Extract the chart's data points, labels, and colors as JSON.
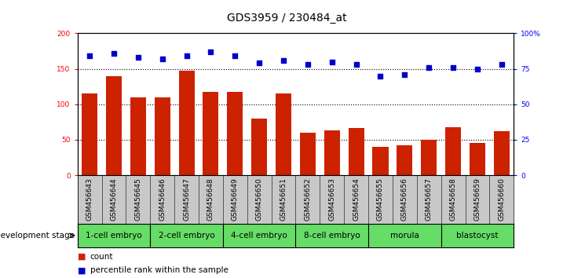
{
  "title": "GDS3959 / 230484_at",
  "samples": [
    "GSM456643",
    "GSM456644",
    "GSM456645",
    "GSM456646",
    "GSM456647",
    "GSM456648",
    "GSM456649",
    "GSM456650",
    "GSM456651",
    "GSM456652",
    "GSM456653",
    "GSM456654",
    "GSM456655",
    "GSM456656",
    "GSM456657",
    "GSM456658",
    "GSM456659",
    "GSM456660"
  ],
  "counts": [
    115,
    140,
    110,
    110,
    147,
    118,
    118,
    80,
    115,
    60,
    63,
    67,
    40,
    42,
    50,
    68,
    45,
    62
  ],
  "percentiles": [
    84,
    86,
    83,
    82,
    84,
    87,
    84,
    79,
    81,
    78,
    80,
    78,
    70,
    71,
    76,
    76,
    75,
    78
  ],
  "stages": [
    {
      "label": "1-cell embryo",
      "start": 0,
      "end": 3
    },
    {
      "label": "2-cell embryo",
      "start": 3,
      "end": 6
    },
    {
      "label": "4-cell embryo",
      "start": 6,
      "end": 9
    },
    {
      "label": "8-cell embryo",
      "start": 9,
      "end": 12
    },
    {
      "label": "morula",
      "start": 12,
      "end": 15
    },
    {
      "label": "blastocyst",
      "start": 15,
      "end": 18
    }
  ],
  "bar_color": "#CC2200",
  "dot_color": "#0000CC",
  "ylim_left": [
    0,
    200
  ],
  "ylim_right": [
    0,
    100
  ],
  "stage_color": "#66DD66",
  "tick_bg_color": "#C8C8C8",
  "title_fontsize": 10,
  "tick_fontsize": 6.5,
  "stage_fontsize": 7.5,
  "legend_fontsize": 7.5,
  "gridline_vals": [
    50,
    100,
    150
  ],
  "left_yticks": [
    0,
    50,
    100,
    150,
    200
  ],
  "right_yticks": [
    0,
    25,
    50,
    75,
    100
  ],
  "right_yticklabels": [
    "0",
    "25",
    "50",
    "75",
    "100%"
  ]
}
